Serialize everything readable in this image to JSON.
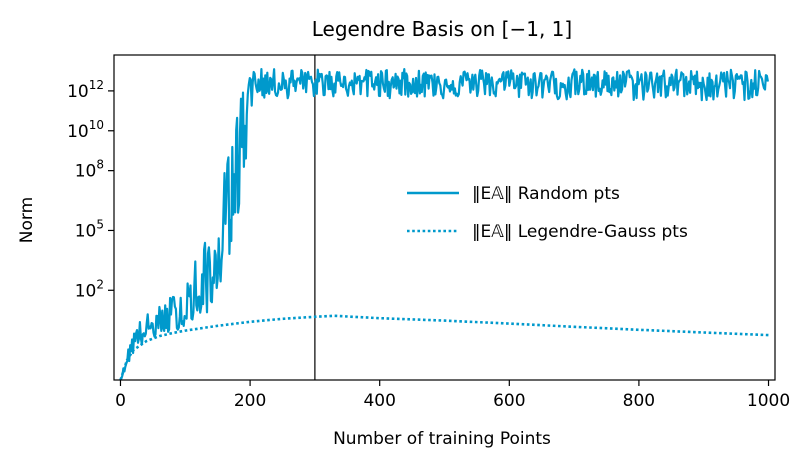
{
  "chart_data": {
    "type": "line",
    "title": "Legendre Basis on [−1, 1]",
    "xlabel": "Number of training Points",
    "ylabel": "Norm",
    "xlim": [
      -10,
      1010
    ],
    "ylog10lim": [
      -2.5,
      13.8
    ],
    "yscale": "log",
    "grid": false,
    "legend_position": "center-right",
    "x_ticks": [
      {
        "value": 0,
        "label": "0"
      },
      {
        "value": 200,
        "label": "200"
      },
      {
        "value": 400,
        "label": "400"
      },
      {
        "value": 600,
        "label": "600"
      },
      {
        "value": 800,
        "label": "800"
      },
      {
        "value": 1000,
        "label": "1000"
      }
    ],
    "y_ticks": [
      {
        "log10": 2,
        "base": "10",
        "exp": "2"
      },
      {
        "log10": 5,
        "base": "10",
        "exp": "5"
      },
      {
        "log10": 8,
        "base": "10",
        "exp": "8"
      },
      {
        "log10": 10,
        "base": "10",
        "exp": "10"
      },
      {
        "log10": 12,
        "base": "10",
        "exp": "12"
      }
    ],
    "vline_x": 300,
    "series": [
      {
        "legend_label": "‖E𝔸‖ Random pts",
        "style": "solid",
        "color": "#0099cc",
        "x": [
          0,
          20,
          40,
          60,
          80,
          100,
          120,
          140,
          150,
          160,
          170,
          180,
          190,
          195,
          200,
          210,
          250,
          300,
          350,
          400,
          450,
          500,
          550,
          600,
          650,
          700,
          750,
          800,
          850,
          900,
          950,
          1000
        ],
        "y_log10": [
          -2.5,
          -0.5,
          0.0,
          0.3,
          0.5,
          0.8,
          1.3,
          2.0,
          3.0,
          5.0,
          7.0,
          9.0,
          10.5,
          11.5,
          12.3,
          12.5,
          12.5,
          12.4,
          12.5,
          12.5,
          12.4,
          12.5,
          12.4,
          12.5,
          12.5,
          12.4,
          12.5,
          12.4,
          12.5,
          12.4,
          12.5,
          12.4
        ],
        "y_band_log10": [
          [
            -2.5,
            -2.5
          ],
          [
            -1.2,
            0.2
          ],
          [
            -0.6,
            0.8
          ],
          [
            -0.3,
            1.2
          ],
          [
            -0.1,
            1.8
          ],
          [
            0.2,
            2.8
          ],
          [
            0.6,
            4.0
          ],
          [
            1.0,
            4.8
          ],
          [
            1.8,
            6.0
          ],
          [
            3.0,
            8.0
          ],
          [
            4.0,
            9.2
          ],
          [
            5.5,
            11.0
          ],
          [
            7.0,
            12.3
          ],
          [
            8.5,
            12.8
          ],
          [
            11.0,
            13.1
          ],
          [
            11.6,
            13.1
          ],
          [
            11.6,
            13.1
          ],
          [
            11.7,
            13.1
          ],
          [
            11.7,
            13.0
          ],
          [
            11.6,
            13.1
          ],
          [
            11.7,
            13.1
          ],
          [
            11.6,
            13.0
          ],
          [
            11.7,
            13.1
          ],
          [
            11.6,
            13.1
          ],
          [
            11.6,
            13.0
          ],
          [
            11.5,
            13.1
          ],
          [
            11.6,
            13.0
          ],
          [
            11.5,
            13.1
          ],
          [
            11.6,
            13.1
          ],
          [
            11.5,
            13.0
          ],
          [
            11.5,
            13.1
          ],
          [
            11.6,
            13.0
          ]
        ]
      },
      {
        "legend_label": "‖E𝔸‖ Legendre-Gauss pts",
        "style": "dotted",
        "color": "#0099cc",
        "x": [
          0,
          10,
          20,
          40,
          60,
          80,
          100,
          150,
          200,
          250,
          300,
          330,
          400,
          500,
          600,
          700,
          800,
          900,
          1000
        ],
        "y_log10": [
          -2.5,
          -1.5,
          -1.0,
          -0.55,
          -0.3,
          -0.15,
          -0.02,
          0.22,
          0.42,
          0.57,
          0.67,
          0.72,
          0.6,
          0.48,
          0.33,
          0.17,
          0.02,
          -0.12,
          -0.25
        ]
      }
    ]
  }
}
